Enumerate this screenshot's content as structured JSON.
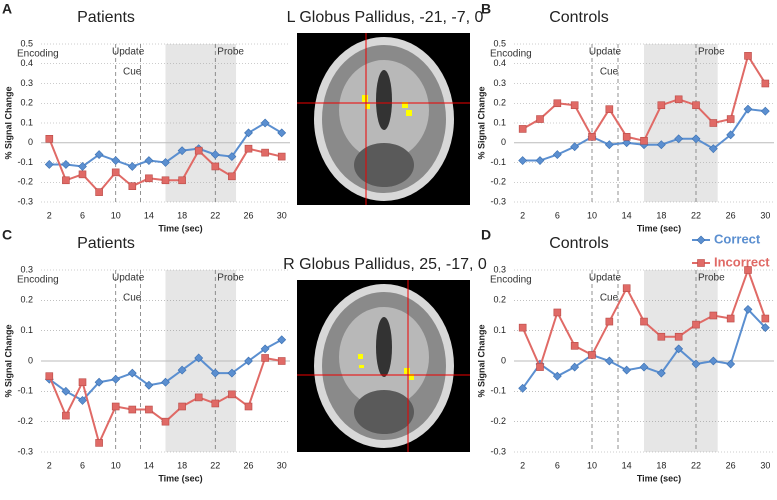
{
  "chart_data": [
    {
      "type": "line",
      "panel": "A",
      "title": "Patients",
      "x_label": "Time (sec)",
      "y_label": "% Signal Change",
      "annotations": [
        "Encoding",
        "Update",
        "Cue",
        "Probe"
      ],
      "x": [
        2,
        4,
        6,
        8,
        10,
        12,
        14,
        16,
        18,
        20,
        22,
        24,
        26,
        28,
        30
      ],
      "xlim": [
        1,
        31
      ],
      "xticks": [
        2,
        6,
        10,
        14,
        18,
        22,
        26,
        30
      ],
      "ylim": [
        -0.3,
        0.5
      ],
      "yticks": [
        -0.3,
        -0.2,
        -0.1,
        0,
        0.1,
        0.2,
        0.3,
        0.4,
        0.5
      ],
      "grid": true,
      "markers": [
        10,
        13,
        22
      ],
      "shaded": [
        16,
        24.5
      ],
      "series": [
        {
          "color": "#5b8fd0",
          "marker": "diamond",
          "values": [
            -0.11,
            -0.11,
            -0.12,
            -0.06,
            -0.09,
            -0.12,
            -0.09,
            -0.1,
            -0.04,
            -0.03,
            -0.06,
            -0.07,
            0.05,
            0.1,
            0.05
          ]
        },
        {
          "color": "#e06a66",
          "marker": "square",
          "values": [
            0.02,
            -0.19,
            -0.16,
            -0.25,
            -0.15,
            -0.22,
            -0.18,
            -0.19,
            -0.19,
            -0.04,
            -0.12,
            -0.17,
            -0.03,
            -0.05,
            -0.07
          ]
        }
      ]
    },
    {
      "type": "line",
      "panel": "B",
      "title": "Controls",
      "x_label": "Time (sec)",
      "y_label": "% Signal Change",
      "annotations": [
        "Encoding",
        "Update",
        "Cue",
        "Probe"
      ],
      "x": [
        2,
        4,
        6,
        8,
        10,
        12,
        14,
        16,
        18,
        20,
        22,
        24,
        26,
        28,
        30
      ],
      "xlim": [
        1,
        31
      ],
      "xticks": [
        2,
        6,
        10,
        14,
        18,
        22,
        26,
        30
      ],
      "ylim": [
        -0.3,
        0.5
      ],
      "yticks": [
        -0.3,
        -0.2,
        -0.1,
        0,
        0.1,
        0.2,
        0.3,
        0.4,
        0.5
      ],
      "grid": true,
      "markers": [
        10,
        13,
        22
      ],
      "shaded": [
        16,
        24.5
      ],
      "series": [
        {
          "name": "Correct",
          "color": "#5b8fd0",
          "marker": "diamond",
          "values": [
            -0.09,
            -0.09,
            -0.06,
            -0.02,
            0.03,
            -0.01,
            0,
            -0.01,
            -0.01,
            0.02,
            0.02,
            -0.03,
            0.04,
            0.17,
            0.16
          ]
        },
        {
          "name": "Incorrect",
          "color": "#e06a66",
          "marker": "square",
          "values": [
            0.07,
            0.12,
            0.2,
            0.19,
            0.03,
            0.17,
            0.03,
            0.01,
            0.19,
            0.22,
            0.19,
            0.1,
            0.12,
            0.44,
            0.3
          ]
        }
      ]
    },
    {
      "type": "line",
      "panel": "C",
      "title": "Patients",
      "x_label": "Time (sec)",
      "y_label": "% Signal Change",
      "annotations": [
        "Encoding",
        "Update",
        "Cue",
        "Probe"
      ],
      "x": [
        2,
        4,
        6,
        8,
        10,
        12,
        14,
        16,
        18,
        20,
        22,
        24,
        26,
        28,
        30
      ],
      "xlim": [
        1,
        31
      ],
      "xticks": [
        2,
        6,
        10,
        14,
        18,
        22,
        26,
        30
      ],
      "ylim": [
        -0.3,
        0.3
      ],
      "yticks": [
        -0.3,
        -0.2,
        -0.1,
        0,
        0.1,
        0.2,
        0.3
      ],
      "grid": true,
      "markers": [
        10,
        13,
        22
      ],
      "shaded": [
        16,
        24.5
      ],
      "series": [
        {
          "color": "#5b8fd0",
          "marker": "diamond",
          "values": [
            -0.06,
            -0.1,
            -0.13,
            -0.07,
            -0.06,
            -0.04,
            -0.08,
            -0.07,
            -0.03,
            0.01,
            -0.04,
            -0.04,
            0,
            0.04,
            0.07
          ]
        },
        {
          "color": "#e06a66",
          "marker": "square",
          "values": [
            -0.05,
            -0.18,
            -0.07,
            -0.27,
            -0.15,
            -0.16,
            -0.16,
            -0.2,
            -0.15,
            -0.12,
            -0.14,
            -0.11,
            -0.15,
            0.01,
            0
          ]
        }
      ]
    },
    {
      "type": "line",
      "panel": "D",
      "title": "Controls",
      "x_label": "Time (sec)",
      "y_label": "% Signal Change",
      "annotations": [
        "Encoding",
        "Update",
        "Cue",
        "Probe"
      ],
      "x": [
        2,
        4,
        6,
        8,
        10,
        12,
        14,
        16,
        18,
        20,
        22,
        24,
        26,
        28,
        30
      ],
      "xlim": [
        1,
        31
      ],
      "xticks": [
        2,
        6,
        10,
        14,
        18,
        22,
        26,
        30
      ],
      "ylim": [
        -0.3,
        0.3
      ],
      "yticks": [
        -0.3,
        -0.2,
        -0.1,
        0,
        0.1,
        0.2,
        0.3
      ],
      "grid": true,
      "markers": [
        10,
        13,
        22
      ],
      "shaded": [
        16,
        24.5
      ],
      "series": [
        {
          "color": "#5b8fd0",
          "marker": "diamond",
          "values": [
            -0.09,
            -0.01,
            -0.05,
            -0.02,
            0.02,
            0,
            -0.03,
            -0.02,
            -0.04,
            0.04,
            -0.01,
            0,
            -0.01,
            0.17,
            0.11
          ]
        },
        {
          "color": "#e06a66",
          "marker": "square",
          "values": [
            0.11,
            -0.02,
            0.16,
            0.05,
            0.02,
            0.13,
            0.24,
            0.13,
            0.08,
            0.08,
            0.12,
            0.15,
            0.14,
            0.3,
            0.14
          ]
        }
      ]
    }
  ],
  "images": [
    {
      "title": "L Globus Pallidus, -21, -7, 0"
    },
    {
      "title": "R Globus Pallidus, 25, -17, 0"
    }
  ]
}
